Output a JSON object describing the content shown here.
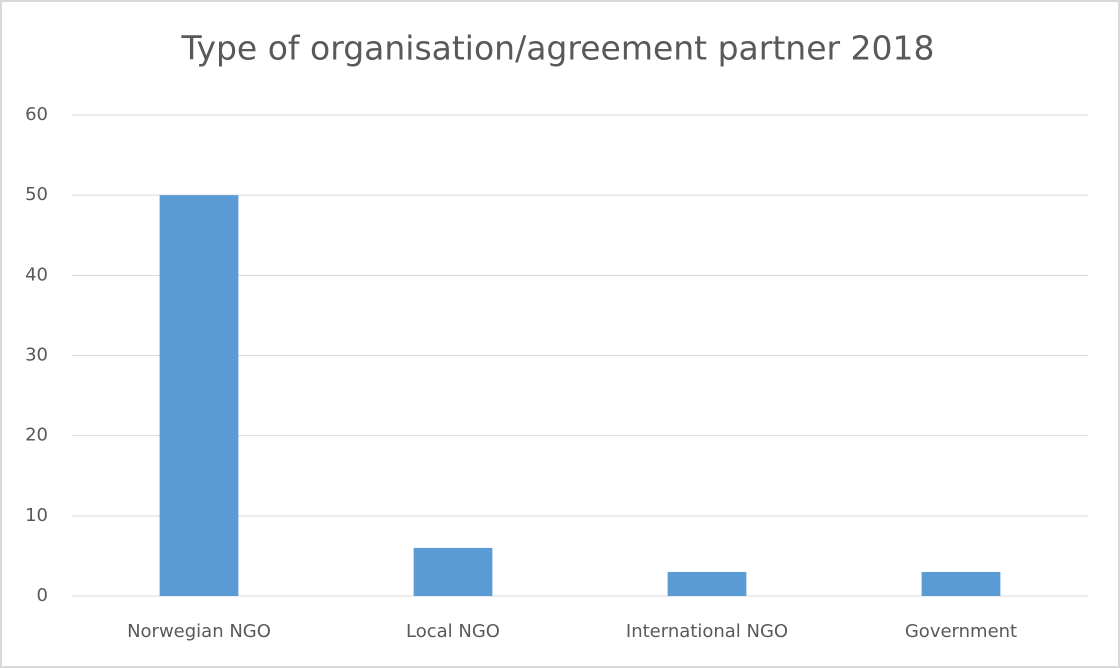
{
  "chart_data": {
    "type": "bar",
    "title": "Type of organisation/agreement partner 2018",
    "categories": [
      "Norwegian NGO",
      "Local NGO",
      "International NGO",
      "Government"
    ],
    "values": [
      50,
      6,
      3,
      3
    ],
    "color": "#5b9bd5",
    "ylim": [
      0,
      60
    ],
    "yticks": [
      0,
      10,
      20,
      30,
      40,
      50,
      60
    ],
    "grid": true
  }
}
